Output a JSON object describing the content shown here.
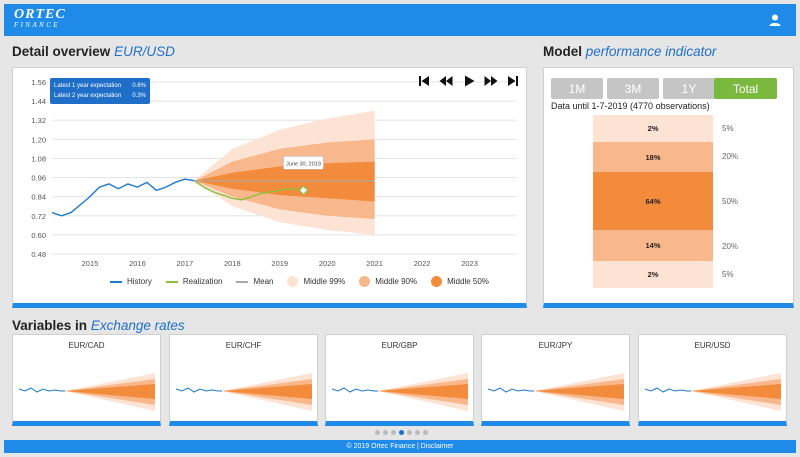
{
  "app": {
    "logo_main": "ORTEC",
    "logo_sub": "FINANCE"
  },
  "detail": {
    "title": "Detail overview",
    "title_em": "EUR/USD",
    "info": [
      {
        "label": "Latest 1 year expectation",
        "value": "0.6%"
      },
      {
        "label": "Latest 2 year expectation",
        "value": "0.3%"
      }
    ],
    "tooltip": "June 30, 2019",
    "legend": [
      "History",
      "Realization",
      "Mean",
      "Middle 99%",
      "Middle 90%",
      "Middle 50%"
    ]
  },
  "model": {
    "title": "Model",
    "title_em": "performance indicator",
    "tabs": [
      {
        "label": "1M",
        "active": false
      },
      {
        "label": "3M",
        "active": false
      },
      {
        "label": "1Y",
        "active": false
      },
      {
        "label": "Total",
        "active": true
      }
    ],
    "data_until": "Data until 1-7-2019 (4770 observations)",
    "bars": [
      {
        "value": "2%",
        "label": "5%"
      },
      {
        "value": "18%",
        "label": "20%"
      },
      {
        "value": "64%",
        "label": "50%"
      },
      {
        "value": "14%",
        "label": "20%"
      },
      {
        "value": "2%",
        "label": "5%"
      }
    ]
  },
  "variables": {
    "title": "Variables in",
    "title_em": "Exchange rates",
    "cards": [
      "EUR/CAD",
      "EUR/CHF",
      "EUR/GBP",
      "EUR/JPY",
      "EUR/USD"
    ],
    "active_page_index": 3,
    "page_count": 7
  },
  "footer": {
    "text": "© 2019 Ortec Finance | Disclaimer"
  },
  "colors": {
    "brand": "#1f8ae8",
    "accent": "#1f6fc9",
    "history": "#1f7ac9",
    "realization": "#8cbf3f",
    "mean": "#aaaaaa",
    "band99": "#fde3d3",
    "band90": "#f8b88b",
    "band50": "#f28c3c",
    "tab_active": "#7ab93e",
    "tab_inactive": "#c5c5c5"
  },
  "chart_data": {
    "type": "area",
    "x_ticks": [
      "2015",
      "2016",
      "2017",
      "2018",
      "2019",
      "2020",
      "2021",
      "2022",
      "2023"
    ],
    "y_ticks": [
      "0.48",
      "0.60",
      "0.72",
      "0.84",
      "0.96",
      "1.08",
      "1.20",
      "1.32",
      "1.44",
      "1.56"
    ],
    "xlim": [
      2014.2,
      2024.0
    ],
    "ylim": [
      0.48,
      1.56
    ],
    "series": [
      {
        "name": "History",
        "x": [
          2014.2,
          2014.4,
          2014.6,
          2014.8,
          2015.0,
          2015.2,
          2015.4,
          2015.6,
          2015.8,
          2016.0,
          2016.2,
          2016.4,
          2016.6,
          2016.8,
          2017.0,
          2017.2
        ],
        "y": [
          0.74,
          0.72,
          0.74,
          0.79,
          0.84,
          0.9,
          0.92,
          0.89,
          0.92,
          0.9,
          0.93,
          0.88,
          0.9,
          0.93,
          0.95,
          0.94
        ]
      },
      {
        "name": "Realization",
        "x": [
          2017.2,
          2017.4,
          2017.6,
          2017.8,
          2018.0,
          2018.2,
          2018.4,
          2018.6,
          2018.8,
          2019.0,
          2019.2,
          2019.5
        ],
        "y": [
          0.94,
          0.9,
          0.87,
          0.85,
          0.83,
          0.82,
          0.84,
          0.86,
          0.87,
          0.88,
          0.89,
          0.88
        ]
      },
      {
        "name": "Mean",
        "x": [
          2017.2,
          2021.0
        ],
        "y": [
          0.94,
          0.94
        ]
      }
    ],
    "bands": [
      {
        "name": "Middle 99%",
        "x": [
          2017.2,
          2018.0,
          2019.0,
          2020.0,
          2021.0
        ],
        "low": [
          0.94,
          0.78,
          0.68,
          0.63,
          0.6
        ],
        "high": [
          0.94,
          1.14,
          1.26,
          1.33,
          1.38
        ]
      },
      {
        "name": "Middle 90%",
        "x": [
          2017.2,
          2018.0,
          2019.0,
          2020.0,
          2021.0
        ],
        "low": [
          0.94,
          0.84,
          0.76,
          0.72,
          0.7
        ],
        "high": [
          0.94,
          1.06,
          1.14,
          1.18,
          1.2
        ]
      },
      {
        "name": "Middle 50%",
        "x": [
          2017.2,
          2018.0,
          2019.0,
          2020.0,
          2021.0
        ],
        "low": [
          0.94,
          0.89,
          0.85,
          0.83,
          0.81
        ],
        "high": [
          0.94,
          0.99,
          1.03,
          1.05,
          1.06
        ]
      }
    ]
  }
}
